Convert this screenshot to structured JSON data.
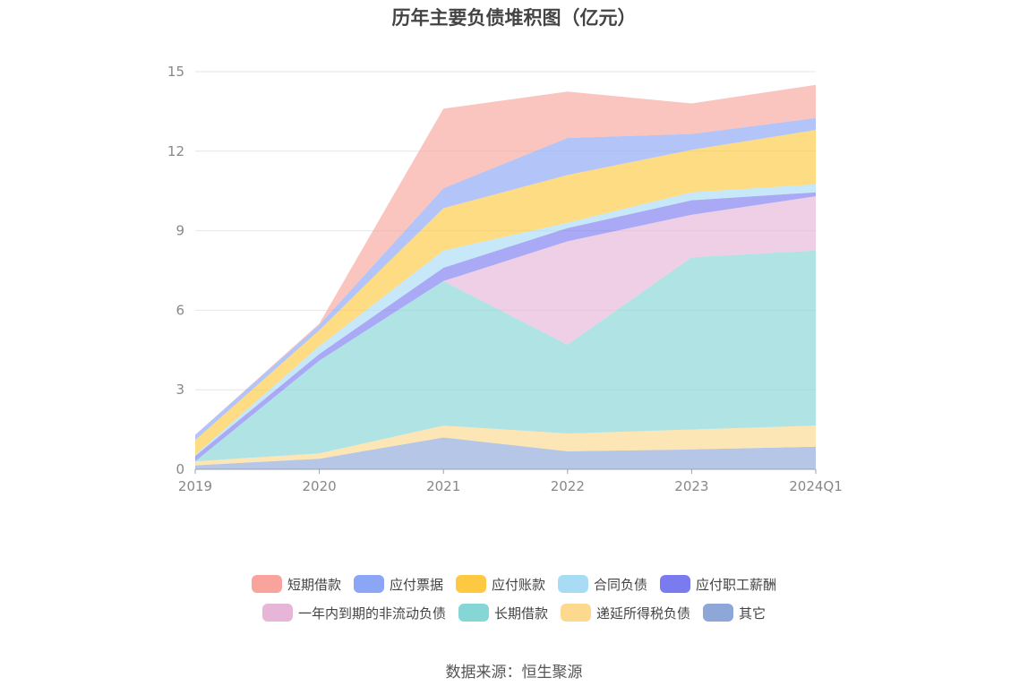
{
  "title": "历年主要负债堆积图（亿元）",
  "source": "数据来源：恒生聚源",
  "chart_data": {
    "type": "area",
    "stacked": true,
    "x": [
      "2019",
      "2020",
      "2021",
      "2022",
      "2023",
      "2024Q1"
    ],
    "y_ticks": [
      "0",
      "3",
      "6",
      "9",
      "12",
      "15"
    ],
    "ylim": [
      0,
      15
    ],
    "grid": true,
    "legend_position": "bottom",
    "series": [
      {
        "name": "其它",
        "color": "#8DA7D8",
        "values": [
          0.15,
          0.4,
          1.2,
          0.68,
          0.75,
          0.85
        ]
      },
      {
        "name": "递延所得税负债",
        "color": "#FCD98E",
        "values": [
          0.15,
          0.2,
          0.45,
          0.67,
          0.75,
          0.8
        ]
      },
      {
        "name": "长期借款",
        "color": "#86D6D6",
        "values": [
          0.0,
          3.5,
          5.45,
          3.35,
          6.5,
          6.6
        ]
      },
      {
        "name": "一年内到期的非流动负债",
        "color": "#E7B5D8",
        "values": [
          0.0,
          0.0,
          0.0,
          3.9,
          1.6,
          2.05
        ]
      },
      {
        "name": "应付职工薪酬",
        "color": "#7B7BF0",
        "values": [
          0.2,
          0.25,
          0.5,
          0.5,
          0.55,
          0.15
        ]
      },
      {
        "name": "合同负债",
        "color": "#A8DCF5",
        "values": [
          0.05,
          0.3,
          0.65,
          0.2,
          0.3,
          0.3
        ]
      },
      {
        "name": "应付账款",
        "color": "#FCC940",
        "values": [
          0.55,
          0.6,
          1.6,
          1.8,
          1.6,
          2.05
        ]
      },
      {
        "name": "应付票据",
        "color": "#8AA6F5",
        "values": [
          0.2,
          0.2,
          0.75,
          1.4,
          0.6,
          0.45
        ]
      },
      {
        "name": "短期借款",
        "color": "#F8A49C",
        "values": [
          0.0,
          0.05,
          3.0,
          1.75,
          1.15,
          1.25
        ]
      }
    ],
    "legend_order": [
      "短期借款",
      "应付票据",
      "应付账款",
      "合同负债",
      "应付职工薪酬",
      "一年内到期的非流动负债",
      "长期借款",
      "递延所得税负债",
      "其它"
    ]
  }
}
